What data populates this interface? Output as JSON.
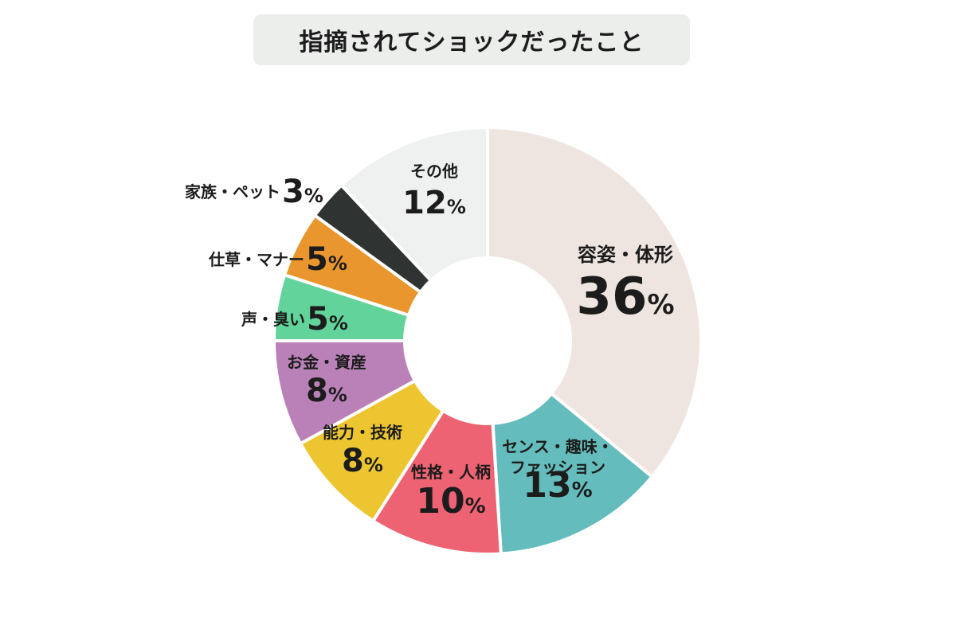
{
  "chart_data": {
    "type": "pie",
    "donut": true,
    "title": "指摘されてショックだったこと",
    "unit": "%",
    "slices": [
      {
        "lines": [
          "容姿・体形"
        ],
        "value": 36,
        "color": "#efe5e0"
      },
      {
        "lines": [
          "センス・趣味・",
          "ファッション"
        ],
        "value": 13,
        "color": "#65bcbd"
      },
      {
        "lines": [
          "性格・人柄"
        ],
        "value": 10,
        "color": "#ed6373"
      },
      {
        "lines": [
          "能力・技術"
        ],
        "value": 8,
        "color": "#ecc530"
      },
      {
        "lines": [
          "お金・資産"
        ],
        "value": 8,
        "color": "#ba81b8"
      },
      {
        "lines": [
          "声・臭い"
        ],
        "value": 5,
        "color": "#62d39a"
      },
      {
        "lines": [
          "仕草・マナー"
        ],
        "value": 5,
        "color": "#e8962d"
      },
      {
        "lines": [
          "家族・ペット"
        ],
        "value": 3,
        "color": "#2f3331"
      },
      {
        "lines": [
          "その他"
        ],
        "value": 12,
        "color": "#eef1f0"
      }
    ]
  }
}
